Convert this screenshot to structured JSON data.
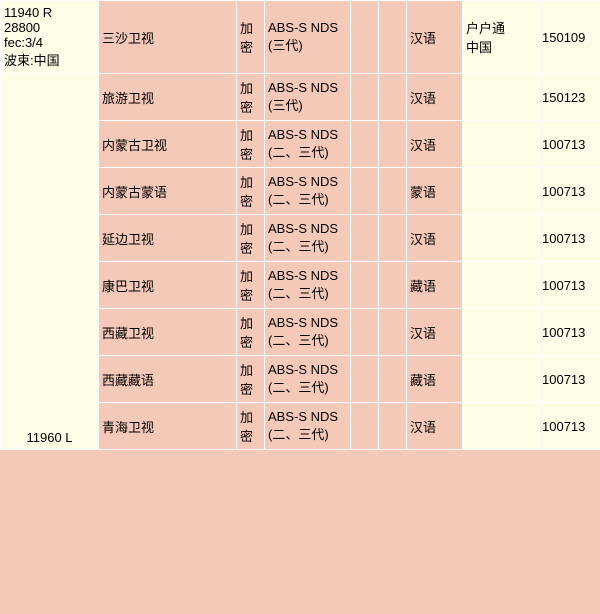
{
  "row_a": {
    "freq_lines": [
      "11940 R",
      "28800",
      "fec:3/4",
      "波束:中国"
    ],
    "channel": "三沙卫视",
    "enc": "加密",
    "sys": "ABS-S NDS(三代)",
    "lang": "汉语",
    "op_lines": [
      "户户通",
      "中国"
    ],
    "date": "150109"
  },
  "group_b": {
    "freq_label": "11960 L",
    "rows": [
      {
        "channel": "旅游卫视",
        "enc": "加密",
        "sys": "ABS-S NDS(三代)",
        "lang": "汉语",
        "date": "150123"
      },
      {
        "channel": "内蒙古卫视",
        "enc": "加密",
        "sys": "ABS-S NDS(二、三代)",
        "lang": "汉语",
        "date": "100713"
      },
      {
        "channel": "内蒙古蒙语",
        "enc": "加密",
        "sys": "ABS-S NDS(二、三代)",
        "lang": "蒙语",
        "date": "100713"
      },
      {
        "channel": "延边卫视",
        "enc": "加密",
        "sys": "ABS-S NDS(二、三代)",
        "lang": "汉语",
        "date": "100713"
      },
      {
        "channel": "康巴卫视",
        "enc": "加密",
        "sys": "ABS-S NDS(二、三代)",
        "lang": "藏语",
        "date": "100713"
      },
      {
        "channel": "西藏卫视",
        "enc": "加密",
        "sys": "ABS-S NDS(二、三代)",
        "lang": "汉语",
        "date": "100713"
      },
      {
        "channel": "西藏藏语",
        "enc": "加密",
        "sys": "ABS-S NDS(二、三代)",
        "lang": "藏语",
        "date": "100713"
      },
      {
        "channel": "青海卫视",
        "enc": "加密",
        "sys": "ABS-S NDS(二、三代)",
        "lang": "汉语",
        "date": "100713"
      }
    ]
  },
  "colors": {
    "pink_bg": "#f5c9b8",
    "cream_bg": "#fefbe6",
    "border": "#ffffff"
  }
}
